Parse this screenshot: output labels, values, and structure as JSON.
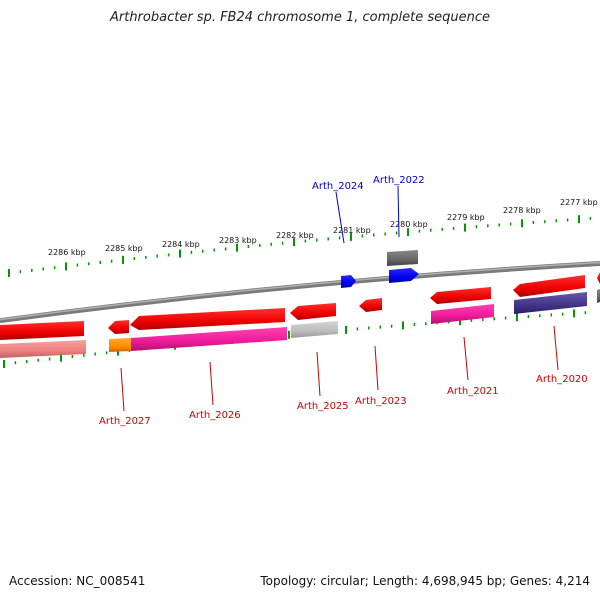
{
  "title": "Arthrobacter sp. FB24 chromosome 1, complete sequence",
  "footer": {
    "accession": "Accession: NC_008541",
    "summary": "Topology: circular; Length: 4,698,945 bp; Genes: 4,214"
  },
  "kbp_labels": [
    "2286 kbp",
    "2285 kbp",
    "2284 kbp",
    "2283 kbp",
    "2282 kbp",
    "2281 kbp",
    "2280 kbp",
    "2279 kbp",
    "2278 kbp",
    "2277 kbp"
  ],
  "genes_forward": [
    {
      "name": "Arth_2024",
      "color": "#0000cc"
    },
    {
      "name": "Arth_2022",
      "color": "#0000cc"
    }
  ],
  "genes_reverse": [
    {
      "name": "Arth_2027",
      "color": "#cc0000"
    },
    {
      "name": "Arth_2026",
      "color": "#cc0000"
    },
    {
      "name": "Arth_2025",
      "color": "#cc0000"
    },
    {
      "name": "Arth_2023",
      "color": "#cc0000"
    },
    {
      "name": "Arth_2021",
      "color": "#cc0000"
    },
    {
      "name": "Arth_2020",
      "color": "#cc0000"
    }
  ],
  "colors": {
    "forward_cds": "#0000ee",
    "reverse_cds": "#ee0000",
    "tick": "#009900",
    "backbone": "#888888",
    "cog_gray": "#666666",
    "cog_pink": "#ee1a9a",
    "cog_orange": "#ff8c00",
    "cog_salmon": "#ee8080",
    "cog_lightgray": "#bbbbbb",
    "cog_purple": "#443388"
  }
}
